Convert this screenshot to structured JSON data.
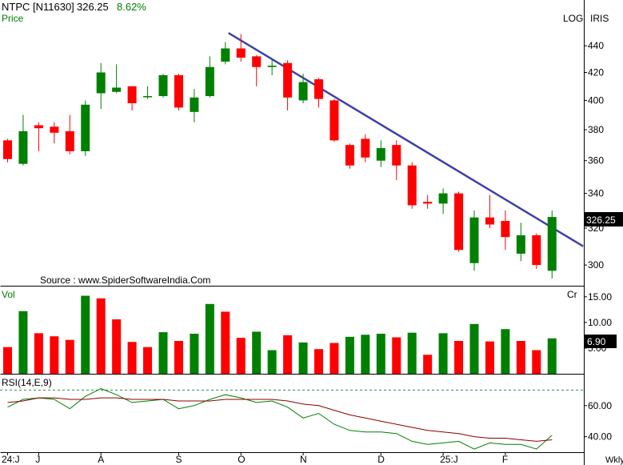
{
  "header": {
    "symbol": "NTPC [N11630]",
    "price": "326.25",
    "change": "8.62%",
    "price_label": "Price",
    "scale_mode": "LOG",
    "style_label": "IRIS",
    "last_price_tag": "326.25"
  },
  "source_text": "Source : www.SpiderSoftwareIndia.Com",
  "volume_panel": {
    "label": "Vol",
    "unit": "Cr",
    "last_value_tag": "6.90"
  },
  "rsi_panel": {
    "label": "RSI(14,E,9)"
  },
  "x_axis": {
    "labels": [
      "24:J",
      "J",
      "A",
      "S",
      "O",
      "N",
      "D",
      "25:J",
      "F"
    ],
    "label_bar_index": [
      0,
      2,
      6,
      11,
      15,
      19,
      24,
      28,
      32
    ],
    "period": "Wkly"
  },
  "chart_data": [
    {
      "type": "candlestick",
      "title": "NTPC [N11630]",
      "ylabel": "Price",
      "scale": "log",
      "ylim": [
        293,
        452
      ],
      "yticks": [
        300,
        320,
        340,
        360,
        380,
        400,
        420,
        440
      ],
      "candles": [
        {
          "o": 373,
          "h": 374,
          "l": 359,
          "c": 361
        },
        {
          "o": 358,
          "h": 390,
          "l": 357,
          "c": 379
        },
        {
          "o": 383,
          "h": 385,
          "l": 366,
          "c": 381
        },
        {
          "o": 382,
          "h": 385,
          "l": 371,
          "c": 378
        },
        {
          "o": 379,
          "h": 390,
          "l": 364,
          "c": 366
        },
        {
          "o": 366,
          "h": 400,
          "l": 363,
          "c": 397
        },
        {
          "o": 405,
          "h": 427,
          "l": 394,
          "c": 420
        },
        {
          "o": 406,
          "h": 426,
          "l": 405,
          "c": 409
        },
        {
          "o": 410,
          "h": 410,
          "l": 393,
          "c": 398
        },
        {
          "o": 403,
          "h": 410,
          "l": 401,
          "c": 403
        },
        {
          "o": 403,
          "h": 419,
          "l": 402,
          "c": 418
        },
        {
          "o": 418,
          "h": 419,
          "l": 393,
          "c": 395
        },
        {
          "o": 392,
          "h": 408,
          "l": 385,
          "c": 402
        },
        {
          "o": 403,
          "h": 432,
          "l": 402,
          "c": 424
        },
        {
          "o": 428,
          "h": 443,
          "l": 426,
          "c": 438
        },
        {
          "o": 438,
          "h": 449,
          "l": 428,
          "c": 431
        },
        {
          "o": 432,
          "h": 433,
          "l": 410,
          "c": 424
        },
        {
          "o": 424,
          "h": 430,
          "l": 418,
          "c": 425
        },
        {
          "o": 427,
          "h": 429,
          "l": 393,
          "c": 402
        },
        {
          "o": 400,
          "h": 419,
          "l": 398,
          "c": 413
        },
        {
          "o": 415,
          "h": 416,
          "l": 395,
          "c": 401
        },
        {
          "o": 400,
          "h": 401,
          "l": 372,
          "c": 373
        },
        {
          "o": 370,
          "h": 371,
          "l": 355,
          "c": 357
        },
        {
          "o": 374,
          "h": 377,
          "l": 359,
          "c": 362
        },
        {
          "o": 360,
          "h": 373,
          "l": 356,
          "c": 368
        },
        {
          "o": 370,
          "h": 373,
          "l": 348,
          "c": 357
        },
        {
          "o": 357,
          "h": 359,
          "l": 331,
          "c": 333
        },
        {
          "o": 335,
          "h": 339,
          "l": 331,
          "c": 334
        },
        {
          "o": 334,
          "h": 343,
          "l": 328,
          "c": 340
        },
        {
          "o": 340,
          "h": 341,
          "l": 307,
          "c": 308
        },
        {
          "o": 301,
          "h": 330,
          "l": 297,
          "c": 326
        },
        {
          "o": 326,
          "h": 339,
          "l": 320,
          "c": 322
        },
        {
          "o": 324,
          "h": 330,
          "l": 308,
          "c": 315
        },
        {
          "o": 306,
          "h": 323,
          "l": 302,
          "c": 316
        },
        {
          "o": 316,
          "h": 317,
          "l": 298,
          "c": 300
        },
        {
          "o": 297,
          "h": 330,
          "l": 293,
          "c": 326.25
        }
      ],
      "trendline": {
        "start": {
          "bar": 14.2,
          "price": 450
        },
        "end": {
          "bar": 37.0,
          "price": 310
        }
      },
      "colors": {
        "up": "#008000",
        "down": "#ff0000",
        "trendline": "#4040a8"
      }
    },
    {
      "type": "bar",
      "ylabel": "Vol",
      "unit": "Cr",
      "ylim": [
        0,
        17
      ],
      "yticks": [
        5,
        10,
        15
      ],
      "values": [
        5.2,
        12.2,
        7.9,
        7.3,
        6.6,
        15.2,
        14.7,
        10.6,
        6.2,
        5.2,
        8.1,
        6.4,
        7.8,
        13.6,
        12.1,
        7.0,
        8.2,
        4.6,
        7.5,
        6.1,
        4.8,
        6.0,
        7.2,
        7.6,
        7.8,
        7.1,
        8.0,
        3.7,
        7.9,
        6.4,
        9.7,
        6.3,
        8.7,
        6.4,
        4.6,
        6.9
      ],
      "directions": [
        "down",
        "up",
        "down",
        "down",
        "down",
        "up",
        "down",
        "down",
        "down",
        "down",
        "up",
        "down",
        "up",
        "up",
        "down",
        "down",
        "up",
        "up",
        "down",
        "up",
        "down",
        "down",
        "up",
        "up",
        "up",
        "down",
        "up",
        "down",
        "up",
        "down",
        "up",
        "down",
        "up",
        "down",
        "down",
        "up"
      ]
    },
    {
      "type": "line",
      "ylabel": "RSI(14,E,9)",
      "ylim": [
        30,
        80
      ],
      "yticks": [
        40,
        60
      ],
      "reference_line": 70,
      "series": [
        {
          "values": [
            59,
            64,
            65,
            64,
            58,
            66,
            71,
            67,
            62,
            63,
            64,
            58,
            60,
            64,
            67,
            65,
            62,
            63,
            59,
            52,
            55,
            48,
            44,
            43,
            43,
            42,
            37,
            35,
            36,
            37,
            32,
            36,
            35,
            35,
            32,
            41
          ],
          "color": "#008000"
        },
        {
          "values": [
            62,
            63,
            65,
            65,
            64,
            64,
            65,
            65,
            64,
            64,
            64,
            63,
            63,
            63,
            64,
            64,
            64,
            64,
            63,
            61,
            60,
            57,
            54,
            52,
            50,
            48,
            46,
            44,
            43,
            42,
            40,
            39,
            39,
            38,
            37,
            38
          ],
          "color": "#8b0000"
        }
      ]
    }
  ]
}
